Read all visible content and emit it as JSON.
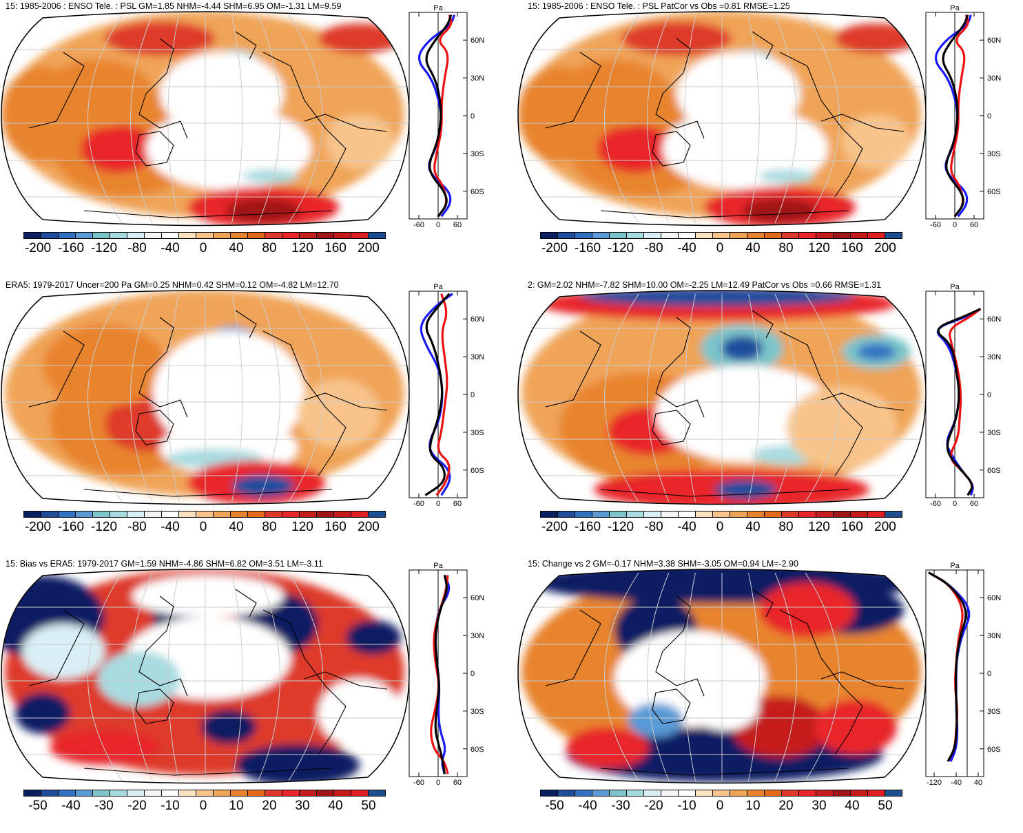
{
  "palette": [
    "#0b1f63",
    "#1e4d9c",
    "#2f72c2",
    "#5a9ad6",
    "#7cc4c9",
    "#a8dbe0",
    "#d8f0f5",
    "#f4f4f4",
    "#ffffff",
    "#fde3bf",
    "#f8c48b",
    "#f0a458",
    "#e8842f",
    "#e26a1a",
    "#de3a2c",
    "#e8262a",
    "#c51e1f",
    "#a01517",
    "#c41a1a",
    "#e02020",
    "#1c4f92"
  ],
  "panels": [
    {
      "title": "15: 1985-2006 : ENSO Tele. : PSL GM=1.85 NHM=-4.44 SHM=6.95 OM=-1.31 LM=9.59",
      "cb_labels": [
        "-200",
        "-160",
        "-120",
        "-80",
        "-40",
        "0",
        "40",
        "80",
        "120",
        "160",
        "200"
      ],
      "profile": {
        "unit": "Pa",
        "x_ticks": [
          "-60",
          "0",
          "60"
        ],
        "y_ticks": [
          "60N",
          "30N",
          "0",
          "30S",
          "60S"
        ]
      },
      "style": "enso"
    },
    {
      "title": "15: 1985-2006 : ENSO Tele. : PSL PatCor vs Obs =0.81 RMSE=1.25",
      "cb_labels": [
        "-200",
        "-160",
        "-120",
        "-80",
        "-40",
        "0",
        "40",
        "80",
        "120",
        "160",
        "200"
      ],
      "profile": {
        "unit": "Pa",
        "x_ticks": [
          "-60",
          "0",
          "60"
        ],
        "y_ticks": [
          "60N",
          "30N",
          "0",
          "30S",
          "60S"
        ]
      },
      "style": "enso"
    },
    {
      "title": "ERA5: 1979-2017 Uncer=200 Pa GM=0.25 NHM=0.42 SHM=0.12 OM=-4.82 LM=12.70",
      "cb_labels": [
        "-200",
        "-160",
        "-120",
        "-80",
        "-40",
        "0",
        "40",
        "80",
        "120",
        "160",
        "200"
      ],
      "profile": {
        "unit": "Pa",
        "x_ticks": [
          "-60",
          "0",
          "60"
        ],
        "y_ticks": [
          "60N",
          "30N",
          "0",
          "30S",
          "60S"
        ]
      },
      "style": "era5"
    },
    {
      "title": "2: GM=2.02 NHM=-7.82 SHM=10.00 OM=-2.25 LM=12.49 PatCor vs Obs =0.66 RMSE=1.31",
      "cb_labels": [
        "-200",
        "-160",
        "-120",
        "-80",
        "-40",
        "0",
        "40",
        "80",
        "120",
        "160",
        "200"
      ],
      "profile": {
        "unit": "Pa",
        "x_ticks": [
          "-60",
          "0",
          "60"
        ],
        "y_ticks": [
          "60N",
          "30N",
          "0",
          "30S",
          "60S"
        ]
      },
      "style": "model2"
    },
    {
      "title": "15: Bias vs ERA5: 1979-2017 GM=1.59 NHM=-4.86 SHM=6.82 OM=3.51 LM=-3.11",
      "cb_labels": [
        "-50",
        "-40",
        "-30",
        "-20",
        "-10",
        "0",
        "10",
        "20",
        "30",
        "40",
        "50"
      ],
      "profile": {
        "unit": "Pa",
        "x_ticks": [
          "-60",
          "0",
          "60"
        ],
        "y_ticks": [
          "60N",
          "30N",
          "0",
          "30S",
          "60S"
        ]
      },
      "style": "bias"
    },
    {
      "title": "15: Change vs 2 GM=-0.17 NHM=3.38 SHM=-3.05 OM=0.94 LM=-2.90",
      "cb_labels": [
        "-50",
        "-40",
        "-30",
        "-20",
        "-10",
        "0",
        "10",
        "20",
        "30",
        "40",
        "50"
      ],
      "profile": {
        "unit": "Pa",
        "x_ticks": [
          "-120",
          "-40",
          "40"
        ],
        "y_ticks": [
          "60N",
          "30N",
          "0",
          "30S",
          "60S"
        ]
      },
      "style": "change"
    }
  ]
}
